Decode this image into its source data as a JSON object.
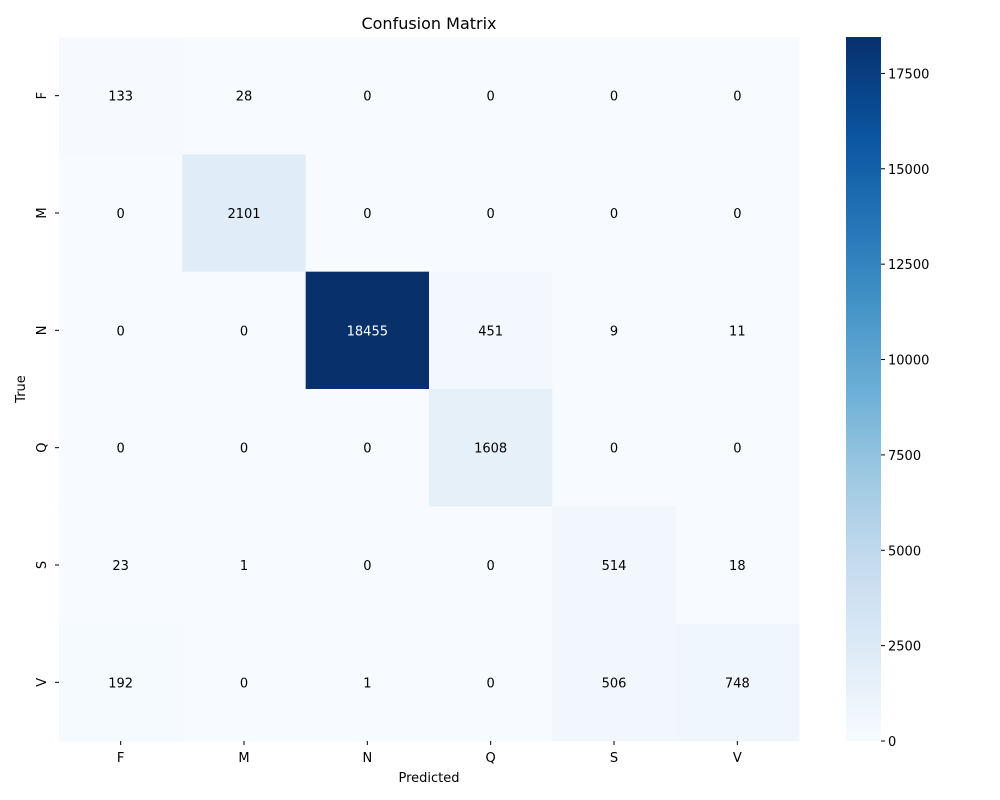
{
  "chart_data": {
    "type": "heatmap",
    "title": "Confusion Matrix",
    "xlabel": "Predicted",
    "ylabel": "True",
    "x_categories": [
      "F",
      "M",
      "N",
      "Q",
      "S",
      "V"
    ],
    "y_categories": [
      "F",
      "M",
      "N",
      "Q",
      "S",
      "V"
    ],
    "values": [
      [
        133,
        28,
        0,
        0,
        0,
        0
      ],
      [
        0,
        2101,
        0,
        0,
        0,
        0
      ],
      [
        0,
        0,
        18455,
        451,
        9,
        11
      ],
      [
        0,
        0,
        0,
        1608,
        0,
        0
      ],
      [
        23,
        1,
        0,
        0,
        514,
        18
      ],
      [
        192,
        0,
        1,
        0,
        506,
        748
      ]
    ],
    "colormap": "Blues",
    "colorbar": {
      "range": [
        0,
        18455
      ],
      "ticks": [
        0,
        2500,
        5000,
        7500,
        10000,
        12500,
        15000,
        17500
      ],
      "tick_labels": [
        "0",
        "2500",
        "5000",
        "7500",
        "10000",
        "12500",
        "15000",
        "17500"
      ]
    },
    "grid": false
  }
}
